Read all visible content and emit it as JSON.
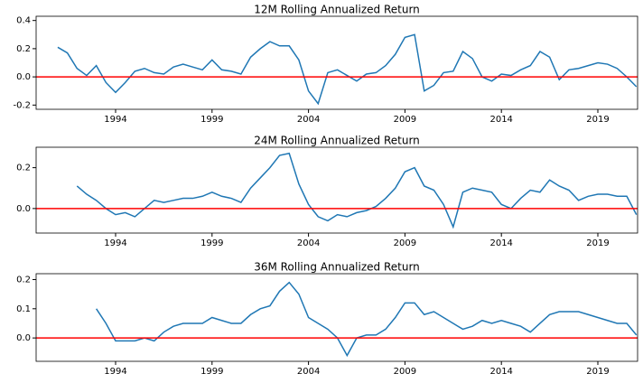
{
  "chart_data": [
    {
      "type": "line",
      "title": "12M Rolling Annualized Return",
      "x": [
        1990.5,
        1991,
        1991.5,
        1992,
        1992.5,
        1993,
        1993.5,
        1994,
        1994.5,
        1995,
        1995.5,
        1996,
        1996.5,
        1997,
        1997.5,
        1998,
        1998.5,
        1999,
        1999.5,
        2000,
        2000.5,
        2001,
        2001.5,
        2002,
        2002.5,
        2003,
        2003.5,
        2004,
        2004.5,
        2005,
        2005.5,
        2006,
        2006.5,
        2007,
        2007.5,
        2008,
        2008.5,
        2009,
        2009.5,
        2010,
        2010.5,
        2011,
        2011.5,
        2012,
        2012.5,
        2013,
        2013.5,
        2014,
        2014.5,
        2015,
        2015.5,
        2016,
        2016.5,
        2017,
        2017.5,
        2018,
        2018.5,
        2019,
        2019.5,
        2020,
        2020.5,
        2021
      ],
      "series": [
        {
          "color": "#1f77b4",
          "values": [
            null,
            0.21,
            0.17,
            0.06,
            0.01,
            0.08,
            -0.04,
            -0.11,
            -0.04,
            0.04,
            0.06,
            0.03,
            0.02,
            0.07,
            0.09,
            0.07,
            0.05,
            0.12,
            0.05,
            0.04,
            0.02,
            0.14,
            0.2,
            0.25,
            0.22,
            0.22,
            0.12,
            -0.1,
            -0.19,
            0.03,
            0.05,
            0.01,
            -0.03,
            0.02,
            0.03,
            0.08,
            0.16,
            0.28,
            0.3,
            -0.1,
            -0.06,
            0.03,
            0.04,
            0.18,
            0.13,
            0.0,
            -0.03,
            0.02,
            0.01,
            0.05,
            0.08,
            0.18,
            0.14,
            -0.02,
            0.05,
            0.06,
            0.08,
            0.1,
            0.09,
            0.06,
            0.0,
            -0.07
          ]
        }
      ],
      "xlim": [
        1989.88,
        2021.06
      ],
      "xticks": [
        1994,
        1999,
        2004,
        2009,
        2014,
        2019
      ],
      "ylim": [
        -0.23,
        0.43
      ],
      "yticks": [
        -0.2,
        {
          "value": 0,
          "label": "0.0"
        },
        0.2,
        0.4
      ],
      "hline": 0,
      "hline_color": "#ff0000"
    },
    {
      "type": "line",
      "title": "24M Rolling Annualized Return",
      "x": [
        1990.5,
        1991,
        1991.5,
        1992,
        1992.5,
        1993,
        1993.5,
        1994,
        1994.5,
        1995,
        1995.5,
        1996,
        1996.5,
        1997,
        1997.5,
        1998,
        1998.5,
        1999,
        1999.5,
        2000,
        2000.5,
        2001,
        2001.5,
        2002,
        2002.5,
        2003,
        2003.5,
        2004,
        2004.5,
        2005,
        2005.5,
        2006,
        2006.5,
        2007,
        2007.5,
        2008,
        2008.5,
        2009,
        2009.5,
        2010,
        2010.5,
        2011,
        2011.5,
        2012,
        2012.5,
        2013,
        2013.5,
        2014,
        2014.5,
        2015,
        2015.5,
        2016,
        2016.5,
        2017,
        2017.5,
        2018,
        2018.5,
        2019,
        2019.5,
        2020,
        2020.5,
        2021
      ],
      "series": [
        {
          "color": "#1f77b4",
          "values": [
            null,
            null,
            null,
            0.11,
            0.07,
            0.04,
            0.0,
            -0.03,
            -0.02,
            -0.04,
            0.0,
            0.04,
            0.03,
            0.04,
            0.05,
            0.05,
            0.06,
            0.08,
            0.06,
            0.05,
            0.03,
            0.1,
            0.15,
            0.2,
            0.26,
            0.27,
            0.12,
            0.02,
            -0.04,
            -0.06,
            -0.03,
            -0.04,
            -0.02,
            -0.01,
            0.01,
            0.05,
            0.1,
            0.18,
            0.2,
            0.11,
            0.09,
            0.02,
            -0.09,
            0.08,
            0.1,
            0.09,
            0.08,
            0.02,
            0.0,
            0.05,
            0.09,
            0.08,
            0.14,
            0.11,
            0.09,
            0.04,
            0.06,
            0.07,
            0.07,
            0.06,
            0.06,
            -0.03
          ]
        }
      ],
      "xlim": [
        1989.88,
        2021.06
      ],
      "xticks": [
        1994,
        1999,
        2004,
        2009,
        2014,
        2019
      ],
      "ylim": [
        -0.12,
        0.3
      ],
      "yticks": [
        {
          "value": 0,
          "label": "0.0"
        },
        0.2
      ],
      "hline": 0,
      "hline_color": "#ff0000"
    },
    {
      "type": "line",
      "title": "36M Rolling Annualized Return",
      "x": [
        1990.5,
        1991,
        1991.5,
        1992,
        1992.5,
        1993,
        1993.5,
        1994,
        1994.5,
        1995,
        1995.5,
        1996,
        1996.5,
        1997,
        1997.5,
        1998,
        1998.5,
        1999,
        1999.5,
        2000,
        2000.5,
        2001,
        2001.5,
        2002,
        2002.5,
        2003,
        2003.5,
        2004,
        2004.5,
        2005,
        2005.5,
        2006,
        2006.5,
        2007,
        2007.5,
        2008,
        2008.5,
        2009,
        2009.5,
        2010,
        2010.5,
        2011,
        2011.5,
        2012,
        2012.5,
        2013,
        2013.5,
        2014,
        2014.5,
        2015,
        2015.5,
        2016,
        2016.5,
        2017,
        2017.5,
        2018,
        2018.5,
        2019,
        2019.5,
        2020,
        2020.5,
        2021
      ],
      "series": [
        {
          "color": "#1f77b4",
          "values": [
            null,
            null,
            null,
            null,
            null,
            0.1,
            0.05,
            -0.01,
            -0.01,
            -0.01,
            0.0,
            -0.01,
            0.02,
            0.04,
            0.05,
            0.05,
            0.05,
            0.07,
            0.06,
            0.05,
            0.05,
            0.08,
            0.1,
            0.11,
            0.16,
            0.19,
            0.15,
            0.07,
            0.05,
            0.03,
            0.0,
            -0.06,
            0.0,
            0.01,
            0.01,
            0.03,
            0.07,
            0.12,
            0.12,
            0.08,
            0.09,
            0.07,
            0.05,
            0.03,
            0.04,
            0.06,
            0.05,
            0.06,
            0.05,
            0.04,
            0.02,
            0.05,
            0.08,
            0.09,
            0.09,
            0.09,
            0.08,
            0.07,
            0.06,
            0.05,
            0.05,
            0.01
          ]
        }
      ],
      "xlim": [
        1989.88,
        2021.06
      ],
      "xticks": [
        1994,
        1999,
        2004,
        2009,
        2014,
        2019
      ],
      "ylim": [
        -0.08,
        0.22
      ],
      "yticks": [
        {
          "value": 0,
          "label": "0.0"
        },
        0.1,
        0.2
      ],
      "hline": 0,
      "hline_color": "#ff0000"
    }
  ]
}
